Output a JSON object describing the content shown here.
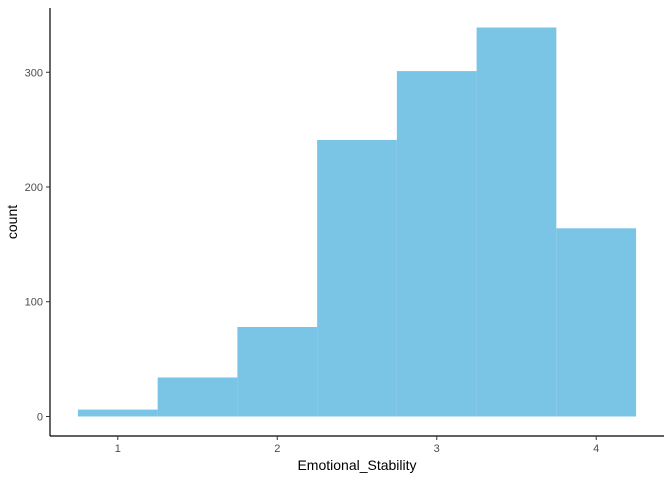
{
  "chart_data": {
    "type": "bar",
    "subtype": "histogram",
    "bins": [
      {
        "x0": 0.75,
        "x1": 1.25,
        "count": 6
      },
      {
        "x0": 1.25,
        "x1": 1.75,
        "count": 34
      },
      {
        "x0": 1.75,
        "x1": 2.25,
        "count": 78
      },
      {
        "x0": 2.25,
        "x1": 2.75,
        "count": 241
      },
      {
        "x0": 2.75,
        "x1": 3.25,
        "count": 301
      },
      {
        "x0": 3.25,
        "x1": 3.75,
        "count": 339
      },
      {
        "x0": 3.75,
        "x1": 4.25,
        "count": 164
      }
    ],
    "xlabel": "Emotional_Stability",
    "ylabel": "count",
    "xticks": [
      1,
      2,
      3,
      4
    ],
    "yticks": [
      0,
      100,
      200,
      300
    ],
    "xlim": [
      0.575,
      4.425
    ],
    "ylim": [
      -17,
      356
    ],
    "grid": false,
    "bar_color": "#7AC4E5",
    "axis_color": "#000000"
  }
}
